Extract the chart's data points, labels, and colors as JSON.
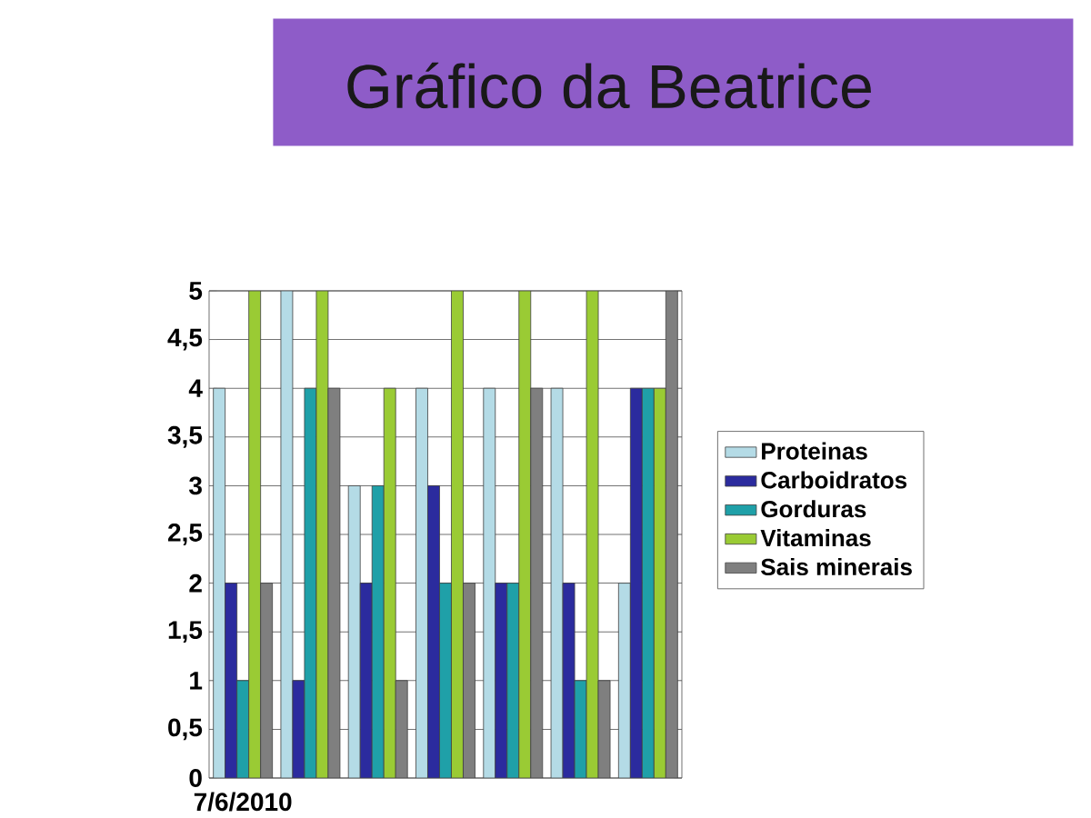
{
  "chart_data": {
    "type": "bar",
    "title": "Gráfico da Beatrice",
    "categories": [
      "7/6/2010",
      null,
      null,
      null,
      null,
      null,
      null
    ],
    "series": [
      {
        "name": "Proteinas",
        "color": "#b4dbe6",
        "values": [
          4,
          5,
          3,
          4,
          4,
          4,
          2
        ]
      },
      {
        "name": "Carboidratos",
        "color": "#2b2b9e",
        "values": [
          2,
          1,
          2,
          3,
          2,
          2,
          4
        ]
      },
      {
        "name": "Gorduras",
        "color": "#1fa0a8",
        "values": [
          1,
          4,
          3,
          2,
          2,
          1,
          4
        ]
      },
      {
        "name": "Vitaminas",
        "color": "#9acb34",
        "values": [
          5,
          5,
          4,
          5,
          5,
          5,
          4
        ]
      },
      {
        "name": "Sais minerais",
        "color": "#7f7f7f",
        "values": [
          2,
          4,
          1,
          2,
          4,
          1,
          5
        ]
      }
    ],
    "ylim": [
      0,
      5
    ],
    "yticks": [
      0,
      {
        "value": 0.5,
        "label": "0,5"
      },
      1,
      {
        "value": 1.5,
        "label": "1,5"
      },
      2,
      {
        "value": 2.5,
        "label": "2,5"
      },
      3,
      {
        "value": 3.5,
        "label": "3,5"
      },
      4,
      {
        "value": 4.5,
        "label": "4,5"
      },
      5
    ],
    "grid": "y",
    "legend": "right"
  }
}
